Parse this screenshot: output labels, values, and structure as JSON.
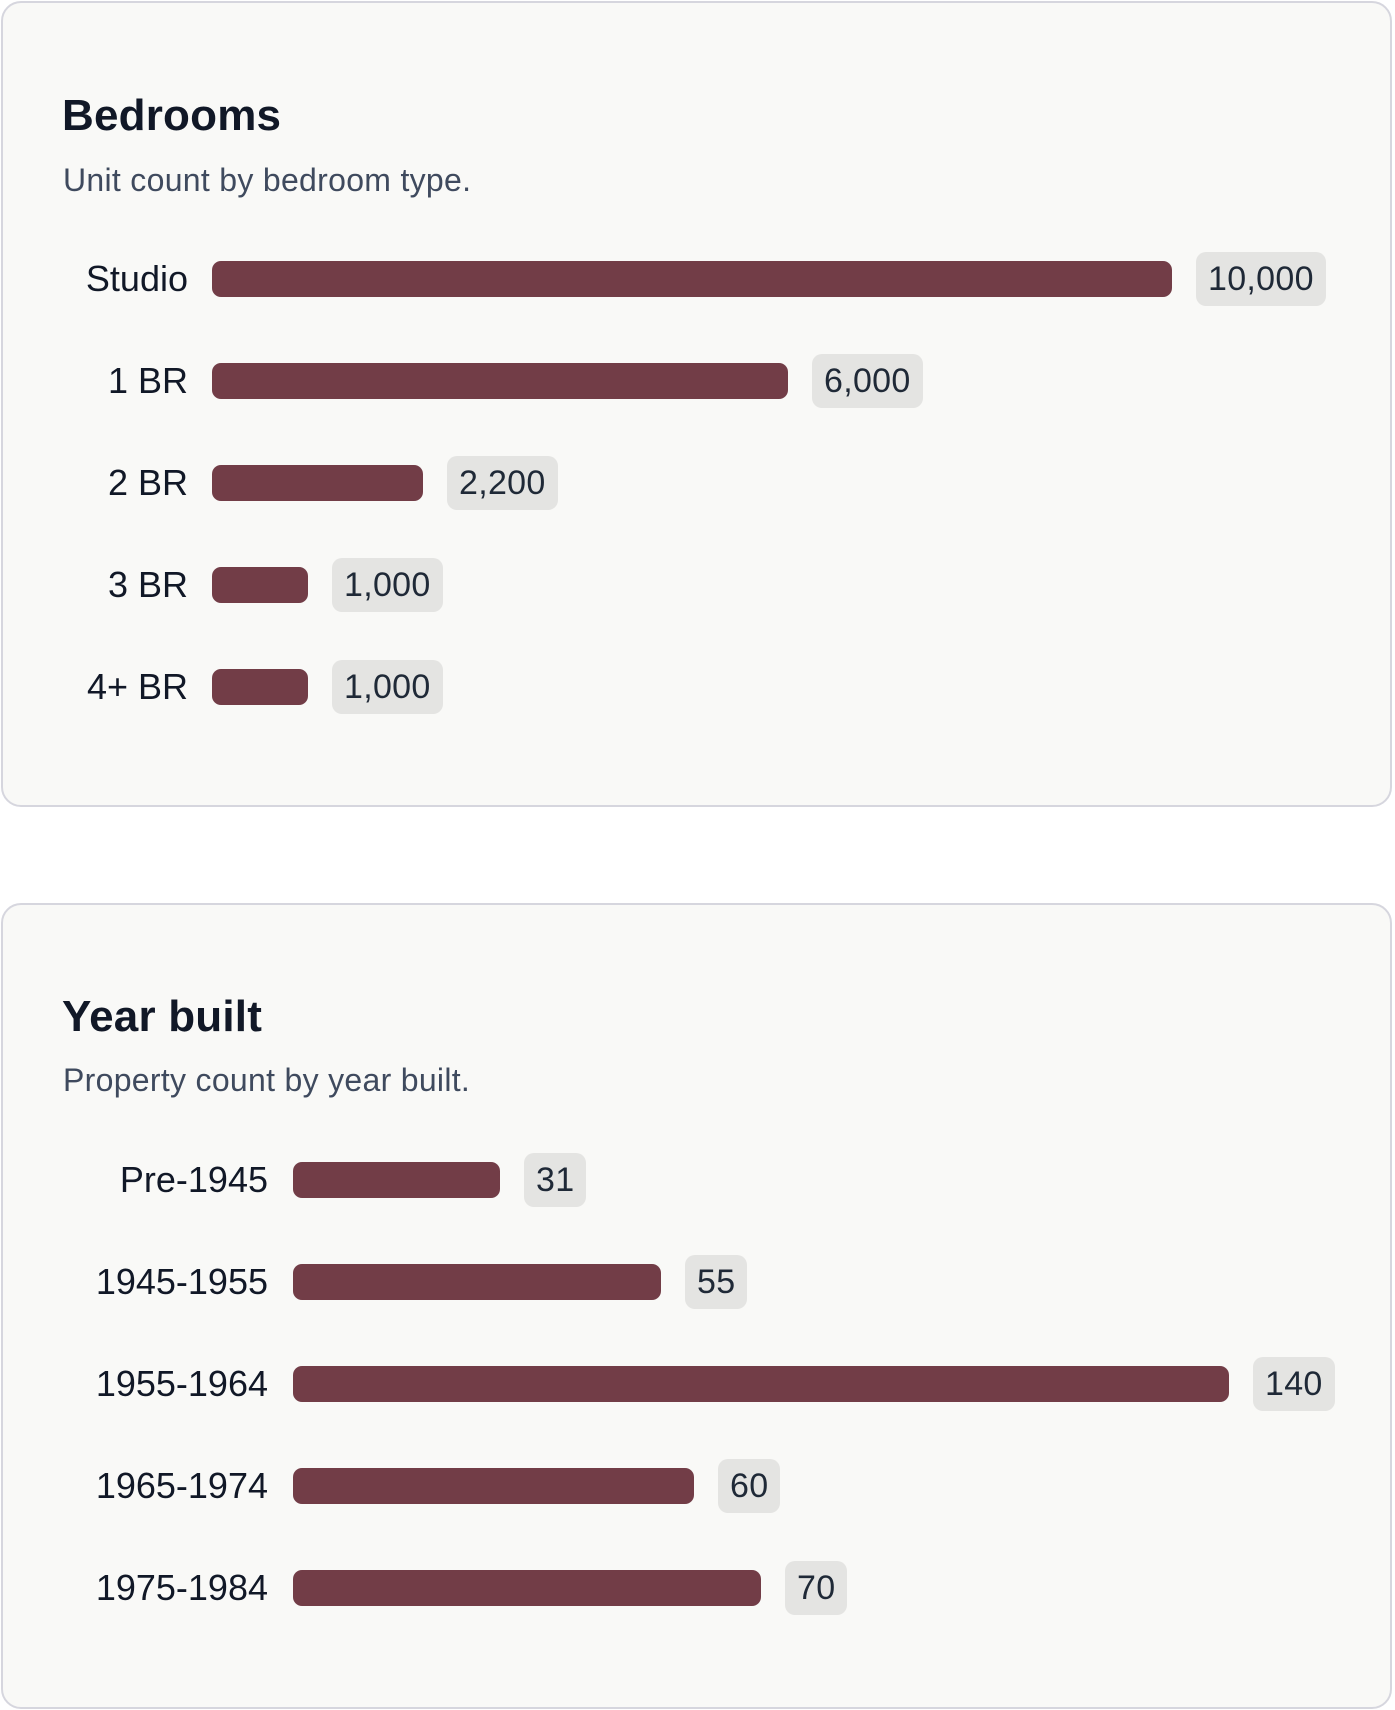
{
  "chart_data": [
    {
      "type": "bar",
      "orientation": "horizontal",
      "title": "Bedrooms",
      "subtitle": "Unit count by bedroom type.",
      "categories": [
        "Studio",
        "1 BR",
        "2 BR",
        "3 BR",
        "4+ BR"
      ],
      "values": [
        10000,
        6000,
        2200,
        1000,
        1000
      ],
      "value_labels": [
        "10,000",
        "6,000",
        "2,200",
        "1,000",
        "1,000"
      ],
      "bar_color": "#723d47",
      "grid": false
    },
    {
      "type": "bar",
      "orientation": "horizontal",
      "title": "Year built",
      "subtitle": "Property count by year built.",
      "categories": [
        "Pre-1945",
        "1945-1955",
        "1955-1964",
        "1965-1974",
        "1975-1984"
      ],
      "values": [
        31,
        55,
        140,
        60,
        70
      ],
      "value_labels": [
        "31",
        "55",
        "140",
        "60",
        "70"
      ],
      "bar_color": "#723d47",
      "grid": false
    }
  ]
}
